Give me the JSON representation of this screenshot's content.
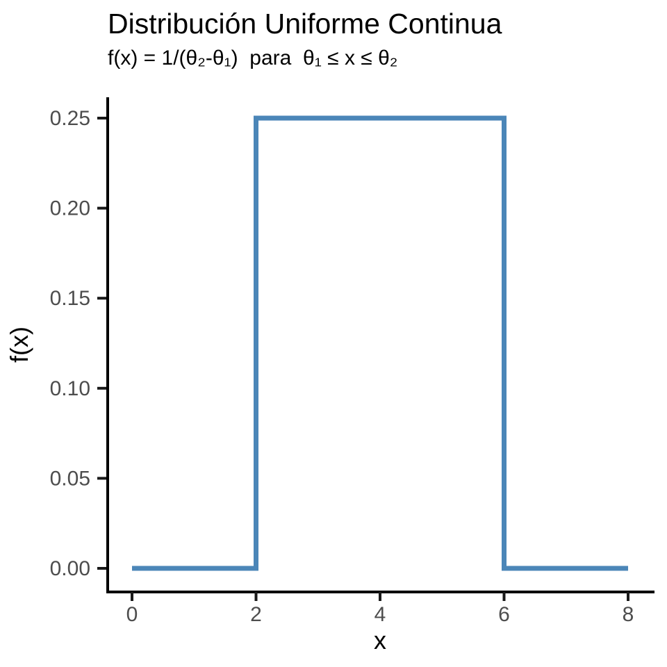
{
  "chart_data": {
    "type": "line",
    "shape": "step",
    "title": "Distribución Uniforme Continua",
    "subtitle": "f(x) = 1/(θ₂-θ₁)  para  θ₁ ≤ x ≤ θ₂",
    "xlabel": "x",
    "ylabel": "f(x)",
    "xlim": [
      0,
      8
    ],
    "ylim": [
      0,
      0.25
    ],
    "x_ticks": {
      "values": [
        0,
        2,
        4,
        6,
        8
      ],
      "labels": [
        "0",
        "2",
        "4",
        "6",
        "8"
      ]
    },
    "y_ticks": {
      "values": [
        0,
        0.05,
        0.1,
        0.15,
        0.2,
        0.25
      ],
      "labels": [
        "0.00",
        "0.05",
        "0.10",
        "0.15",
        "0.20",
        "0.25"
      ]
    },
    "series": [
      {
        "name": "uniform_pdf",
        "color": "#4B86B8",
        "points": [
          [
            0,
            0
          ],
          [
            2,
            0
          ],
          [
            2,
            0.25
          ],
          [
            6,
            0.25
          ],
          [
            6,
            0
          ],
          [
            8,
            0
          ]
        ]
      }
    ],
    "parameters": {
      "theta1": 2,
      "theta2": 6,
      "density": 0.25
    },
    "grid": false,
    "legend": "none",
    "colors": {
      "axis": "#000000",
      "tick_mark": "#1A1A1A",
      "tick_label": "#4D4D4D",
      "title": "#000000",
      "background": "#FFFFFF"
    }
  }
}
